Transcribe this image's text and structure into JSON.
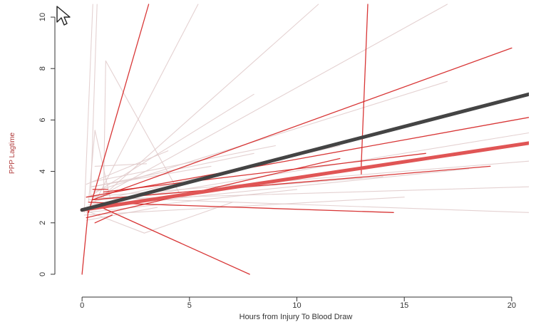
{
  "chart_data": {
    "type": "line",
    "title": "",
    "xlabel": "Hours from Injury To Blood Draw",
    "ylabel": "PPP Lagtime",
    "xlim": [
      -1,
      20.8
    ],
    "ylim": [
      -0.5,
      10.5
    ],
    "x_ticks": [
      0,
      5,
      10,
      15,
      20
    ],
    "y_ticks": [
      0,
      2,
      4,
      6,
      8,
      10
    ],
    "grid": false,
    "legend": "none",
    "colors": {
      "fit_dark": "#444444",
      "fit_red": "#e05555",
      "individual_red": "#d42020",
      "individual_gray": "#dfc9c9"
    },
    "series": [
      {
        "role": "fit",
        "color_key": "fit_dark",
        "width": 5,
        "x": [
          0,
          20.8
        ],
        "y": [
          2.5,
          7.0
        ]
      },
      {
        "role": "fit",
        "color_key": "fit_red",
        "width": 5,
        "x": [
          0,
          20.8
        ],
        "y": [
          2.5,
          5.1
        ]
      },
      {
        "role": "individual",
        "color_key": "individual_red",
        "x": [
          0,
          0.3
        ],
        "y": [
          0.0,
          2.6
        ]
      },
      {
        "role": "individual",
        "color_key": "individual_red",
        "x": [
          0.3,
          3.1
        ],
        "y": [
          2.4,
          10.5
        ]
      },
      {
        "role": "individual",
        "color_key": "individual_red",
        "x": [
          0.9,
          7.8
        ],
        "y": [
          2.6,
          0.0
        ]
      },
      {
        "role": "individual",
        "color_key": "individual_red",
        "x": [
          13.0,
          13.0,
          13.3
        ],
        "y": [
          3.9,
          4.3,
          10.5
        ]
      },
      {
        "role": "individual",
        "color_key": "individual_red",
        "x": [
          0.5,
          20.0
        ],
        "y": [
          2.9,
          8.8
        ]
      },
      {
        "role": "individual",
        "color_key": "individual_red",
        "x": [
          0.2,
          20.8
        ],
        "y": [
          3.0,
          6.1
        ]
      },
      {
        "role": "individual",
        "color_key": "individual_red",
        "x": [
          0.3,
          14.5
        ],
        "y": [
          2.8,
          2.4
        ]
      },
      {
        "role": "individual",
        "color_key": "individual_red",
        "x": [
          0.5,
          19.0
        ],
        "y": [
          2.9,
          4.2
        ]
      },
      {
        "role": "individual",
        "color_key": "individual_red",
        "x": [
          0.2,
          12.0
        ],
        "y": [
          2.2,
          4.5
        ]
      },
      {
        "role": "individual",
        "color_key": "individual_red",
        "x": [
          0.5,
          1.2
        ],
        "y": [
          3.3,
          3.3
        ]
      },
      {
        "role": "individual",
        "color_key": "individual_red",
        "x": [
          0.6,
          1.4
        ],
        "y": [
          2.0,
          2.3
        ]
      },
      {
        "role": "individual",
        "color_key": "individual_red",
        "x": [
          1.0,
          16.0
        ],
        "y": [
          3.2,
          4.7
        ]
      },
      {
        "role": "individual",
        "color_key": "individual_gray",
        "x": [
          0.1,
          0.5
        ],
        "y": [
          2.4,
          10.5
        ]
      },
      {
        "role": "individual",
        "color_key": "individual_gray",
        "x": [
          0.4,
          0.7
        ],
        "y": [
          3.0,
          10.5
        ]
      },
      {
        "role": "individual",
        "color_key": "individual_gray",
        "x": [
          0.6,
          5.4
        ],
        "y": [
          2.8,
          10.5
        ]
      },
      {
        "role": "individual",
        "color_key": "individual_gray",
        "x": [
          1.0,
          17.0
        ],
        "y": [
          3.1,
          10.5
        ]
      },
      {
        "role": "individual",
        "color_key": "individual_gray",
        "x": [
          0.9,
          11.0
        ],
        "y": [
          3.0,
          10.5
        ]
      },
      {
        "role": "individual",
        "color_key": "individual_gray",
        "x": [
          1.0,
          1.1,
          4.5
        ],
        "y": [
          3.0,
          8.3,
          3.2
        ]
      },
      {
        "role": "individual",
        "color_key": "individual_gray",
        "x": [
          0.3,
          8.0
        ],
        "y": [
          3.0,
          7.0
        ]
      },
      {
        "role": "individual",
        "color_key": "individual_gray",
        "x": [
          0.5,
          17.0
        ],
        "y": [
          3.2,
          7.5
        ]
      },
      {
        "role": "individual",
        "color_key": "individual_gray",
        "x": [
          0.3,
          0.6,
          1.3
        ],
        "y": [
          2.8,
          5.6,
          3.0
        ]
      },
      {
        "role": "individual",
        "color_key": "individual_gray",
        "x": [
          0.2,
          18.0
        ],
        "y": [
          2.6,
          4.1
        ]
      },
      {
        "role": "individual",
        "color_key": "individual_gray",
        "x": [
          0.4,
          20.8
        ],
        "y": [
          3.0,
          2.4
        ]
      },
      {
        "role": "individual",
        "color_key": "individual_gray",
        "x": [
          0.4,
          12.0
        ],
        "y": [
          2.8,
          5.0
        ]
      },
      {
        "role": "individual",
        "color_key": "individual_gray",
        "x": [
          0.1,
          2.9,
          7.0
        ],
        "y": [
          2.5,
          1.6,
          2.8
        ]
      },
      {
        "role": "individual",
        "color_key": "individual_gray",
        "x": [
          0.5,
          8.0
        ],
        "y": [
          3.4,
          4.7
        ]
      },
      {
        "role": "individual",
        "color_key": "individual_gray",
        "x": [
          0.4,
          6.0
        ],
        "y": [
          3.4,
          4.2
        ]
      },
      {
        "role": "individual",
        "color_key": "individual_gray",
        "x": [
          0.2,
          20.8
        ],
        "y": [
          3.0,
          4.4
        ]
      },
      {
        "role": "individual",
        "color_key": "individual_gray",
        "x": [
          0.3,
          20.8
        ],
        "y": [
          2.9,
          3.4
        ]
      },
      {
        "role": "individual",
        "color_key": "individual_gray",
        "x": [
          0.2,
          10.0
        ],
        "y": [
          2.4,
          3.3
        ]
      },
      {
        "role": "individual",
        "color_key": "individual_gray",
        "x": [
          0.1,
          15.0
        ],
        "y": [
          2.3,
          3.0
        ]
      },
      {
        "role": "individual",
        "color_key": "individual_gray",
        "x": [
          0.5,
          9.0
        ],
        "y": [
          3.6,
          5.0
        ]
      },
      {
        "role": "individual",
        "color_key": "individual_gray",
        "x": [
          0.3,
          20.8
        ],
        "y": [
          2.7,
          5.5
        ]
      },
      {
        "role": "individual",
        "color_key": "individual_gray",
        "x": [
          0.6,
          3.0
        ],
        "y": [
          4.2,
          4.3
        ]
      },
      {
        "role": "individual",
        "color_key": "individual_gray",
        "x": [
          0.2,
          3.5
        ],
        "y": [
          2.1,
          2.6
        ]
      },
      {
        "role": "individual",
        "color_key": "individual_gray",
        "x": [
          0.4,
          14.0
        ],
        "y": [
          2.9,
          3.8
        ]
      },
      {
        "role": "individual",
        "color_key": "individual_gray",
        "x": [
          0.2,
          4.0
        ],
        "y": [
          3.5,
          4.8
        ]
      }
    ]
  }
}
